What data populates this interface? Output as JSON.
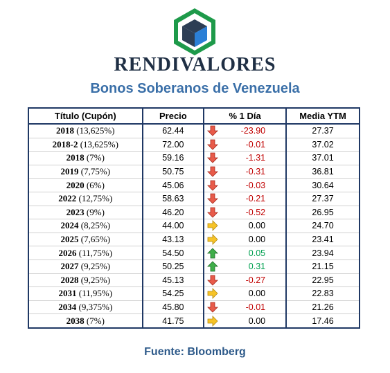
{
  "header": {
    "brand": "RENDIVALORES",
    "subtitle": "Bonos Soberanos de Venezuela"
  },
  "colors": {
    "accent": "#3a6fa8",
    "down": "#c00000",
    "up": "#00a050",
    "border": "#1f3864"
  },
  "table": {
    "columns": [
      "Título (Cupón)",
      "Precio",
      "% 1 Día",
      "Media YTM"
    ],
    "rows": [
      {
        "year": "2018",
        "coupon": "(13,625%)",
        "price": "62.44",
        "change": "-23.90",
        "trend": "down",
        "ytm": "27.37"
      },
      {
        "year": "2018-2",
        "coupon": "(13,625%)",
        "price": "72.00",
        "change": "-0.01",
        "trend": "down",
        "ytm": "37.02"
      },
      {
        "year": "2018",
        "coupon": "(7%)",
        "price": "59.16",
        "change": "-1.31",
        "trend": "down",
        "ytm": "37.01"
      },
      {
        "year": "2019",
        "coupon": "(7,75%)",
        "price": "50.75",
        "change": "-0.31",
        "trend": "down",
        "ytm": "36.81"
      },
      {
        "year": "2020",
        "coupon": "(6%)",
        "price": "45.06",
        "change": "-0.03",
        "trend": "down",
        "ytm": "30.64"
      },
      {
        "year": "2022",
        "coupon": "(12,75%)",
        "price": "58.63",
        "change": "-0.21",
        "trend": "down",
        "ytm": "27.37"
      },
      {
        "year": "2023",
        "coupon": "(9%)",
        "price": "46.20",
        "change": "-0.52",
        "trend": "down",
        "ytm": "26.95"
      },
      {
        "year": "2024",
        "coupon": "(8,25%)",
        "price": "44.00",
        "change": "0.00",
        "trend": "flat",
        "ytm": "24.70"
      },
      {
        "year": "2025",
        "coupon": "(7,65%)",
        "price": "43.13",
        "change": "0.00",
        "trend": "flat",
        "ytm": "23.41"
      },
      {
        "year": "2026",
        "coupon": "(11,75%)",
        "price": "54.50",
        "change": "0.05",
        "trend": "up",
        "ytm": "23.94"
      },
      {
        "year": "2027",
        "coupon": "(9,25%)",
        "price": "50.25",
        "change": "0.31",
        "trend": "up",
        "ytm": "21.15"
      },
      {
        "year": "2028",
        "coupon": "(9,25%)",
        "price": "45.13",
        "change": "-0.27",
        "trend": "down",
        "ytm": "22.95"
      },
      {
        "year": "2031",
        "coupon": "(11,95%)",
        "price": "54.25",
        "change": "0.00",
        "trend": "flat",
        "ytm": "22.83"
      },
      {
        "year": "2034",
        "coupon": "(9,375%)",
        "price": "45.80",
        "change": "-0.01",
        "trend": "down",
        "ytm": "21.26"
      },
      {
        "year": "2038",
        "coupon": "(7%)",
        "price": "41.75",
        "change": "0.00",
        "trend": "flat",
        "ytm": "17.46"
      }
    ]
  },
  "footer": {
    "source": "Fuente: Bloomberg"
  }
}
